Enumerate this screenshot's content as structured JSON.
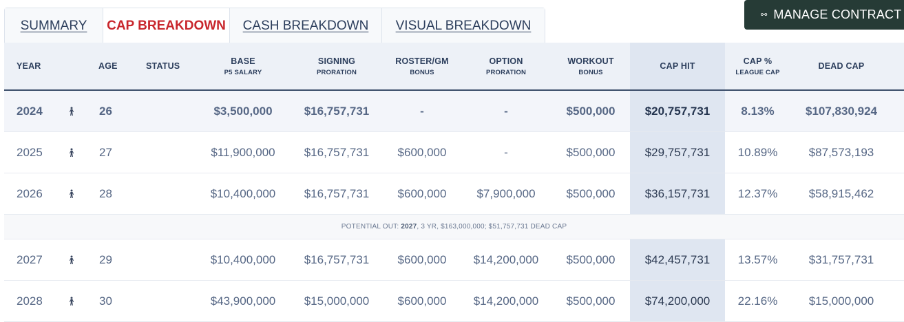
{
  "tabs": [
    {
      "label": "SUMMARY",
      "active": false
    },
    {
      "label": "CAP BREAKDOWN",
      "active": true
    },
    {
      "label": "CASH BREAKDOWN",
      "active": false
    },
    {
      "label": "VISUAL BREAKDOWN",
      "active": false
    }
  ],
  "manage_button": {
    "label": "MANAGE CONTRACT",
    "icon": "link-icon"
  },
  "headers": [
    {
      "main": "YEAR",
      "sub": ""
    },
    {
      "main": "AGE",
      "sub": ""
    },
    {
      "main": "STATUS",
      "sub": ""
    },
    {
      "main": "BASE",
      "sub": "P5 SALARY"
    },
    {
      "main": "SIGNING",
      "sub": "PRORATION"
    },
    {
      "main": "ROSTER/GM",
      "sub": "BONUS"
    },
    {
      "main": "OPTION",
      "sub": "PRORATION"
    },
    {
      "main": "WORKOUT",
      "sub": "BONUS"
    },
    {
      "main": "CAP HIT",
      "sub": ""
    },
    {
      "main": "CAP %",
      "sub": "LEAGUE CAP"
    },
    {
      "main": "DEAD CAP",
      "sub": ""
    }
  ],
  "rows": [
    {
      "year": "2024",
      "age": "26",
      "status": "",
      "base": "$3,500,000",
      "signing": "$16,757,731",
      "roster": "-",
      "option": "-",
      "workout": "$500,000",
      "cap_hit": "$20,757,731",
      "cap_pct": "8.13%",
      "dead_cap": "$107,830,924"
    },
    {
      "year": "2025",
      "age": "27",
      "status": "",
      "base": "$11,900,000",
      "signing": "$16,757,731",
      "roster": "$600,000",
      "option": "-",
      "workout": "$500,000",
      "cap_hit": "$29,757,731",
      "cap_pct": "10.89%",
      "dead_cap": "$87,573,193"
    },
    {
      "year": "2026",
      "age": "28",
      "status": "",
      "base": "$10,400,000",
      "signing": "$16,757,731",
      "roster": "$600,000",
      "option": "$7,900,000",
      "workout": "$500,000",
      "cap_hit": "$36,157,731",
      "cap_pct": "12.37%",
      "dead_cap": "$58,915,462"
    },
    {
      "year": "2027",
      "age": "29",
      "status": "",
      "base": "$10,400,000",
      "signing": "$16,757,731",
      "roster": "$600,000",
      "option": "$14,200,000",
      "workout": "$500,000",
      "cap_hit": "$42,457,731",
      "cap_pct": "13.57%",
      "dead_cap": "$31,757,731"
    },
    {
      "year": "2028",
      "age": "30",
      "status": "",
      "base": "$43,900,000",
      "signing": "$15,000,000",
      "roster": "$600,000",
      "option": "$14,200,000",
      "workout": "$500,000",
      "cap_hit": "$74,200,000",
      "cap_pct": "22.16%",
      "dead_cap": "$15,000,000"
    }
  ],
  "potential_out": {
    "label": "POTENTIAL OUT:",
    "year": "2027",
    "details": ", 3 YR, $163,000,000; $51,757,731 DEAD CAP"
  },
  "row_icon": "player-figure-icon",
  "colors": {
    "active_tab": "#c8262c",
    "button_bg": "#263b36",
    "cap_hit_column": "#dfe6f1",
    "header_bg": "#edf1f7"
  }
}
